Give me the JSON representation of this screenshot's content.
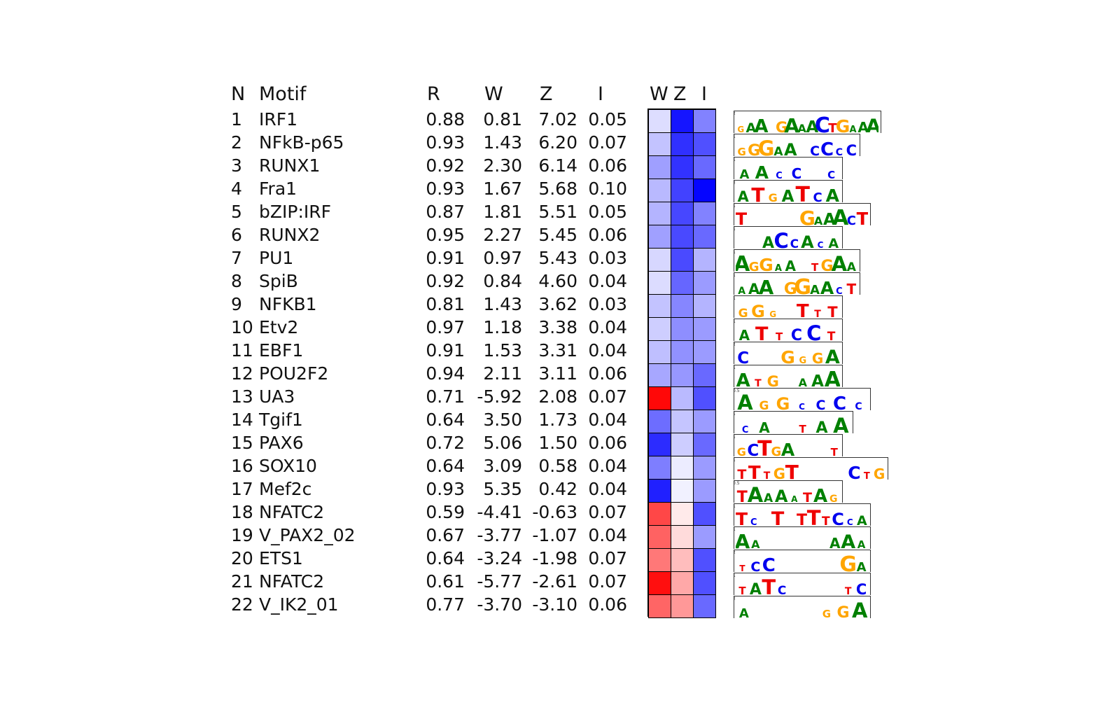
{
  "chart_data": {
    "type": "table",
    "columns": [
      "N",
      "Motif",
      "R",
      "W",
      "Z",
      "I"
    ],
    "heatmap_columns": [
      "W",
      "Z",
      "I"
    ],
    "colors": {
      "positive": "#0000ff",
      "negative": "#ff0000",
      "neutral": "#ffffff"
    },
    "rows": [
      {
        "N": "1",
        "Motif": "IRF1",
        "R": "0.88",
        "W": "0.81",
        "Z": "7.02",
        "I": "0.05"
      },
      {
        "N": "2",
        "Motif": "NFkB-p65",
        "R": "0.93",
        "W": "1.43",
        "Z": "6.20",
        "I": "0.07"
      },
      {
        "N": "3",
        "Motif": "RUNX1",
        "R": "0.92",
        "W": "2.30",
        "Z": "6.14",
        "I": "0.06"
      },
      {
        "N": "4",
        "Motif": "Fra1",
        "R": "0.93",
        "W": "1.67",
        "Z": "5.68",
        "I": "0.10"
      },
      {
        "N": "5",
        "Motif": "bZIP:IRF",
        "R": "0.87",
        "W": "1.81",
        "Z": "5.51",
        "I": "0.05"
      },
      {
        "N": "6",
        "Motif": "RUNX2",
        "R": "0.95",
        "W": "2.27",
        "Z": "5.45",
        "I": "0.06"
      },
      {
        "N": "7",
        "Motif": "PU1",
        "R": "0.91",
        "W": "0.97",
        "Z": "5.43",
        "I": "0.03"
      },
      {
        "N": "8",
        "Motif": "SpiB",
        "R": "0.92",
        "W": "0.84",
        "Z": "4.60",
        "I": "0.04"
      },
      {
        "N": "9",
        "Motif": "NFKB1",
        "R": "0.81",
        "W": "1.43",
        "Z": "3.62",
        "I": "0.03"
      },
      {
        "N": "10",
        "Motif": "Etv2",
        "R": "0.97",
        "W": "1.18",
        "Z": "3.38",
        "I": "0.04"
      },
      {
        "N": "11",
        "Motif": "EBF1",
        "R": "0.91",
        "W": "1.53",
        "Z": "3.31",
        "I": "0.04"
      },
      {
        "N": "12",
        "Motif": "POU2F2",
        "R": "0.94",
        "W": "2.11",
        "Z": "3.11",
        "I": "0.06"
      },
      {
        "N": "13",
        "Motif": "UA3",
        "R": "0.71",
        "W": "-5.92",
        "Z": "2.08",
        "I": "0.07"
      },
      {
        "N": "14",
        "Motif": "Tgif1",
        "R": "0.64",
        "W": "3.50",
        "Z": "1.73",
        "I": "0.04"
      },
      {
        "N": "15",
        "Motif": "PAX6",
        "R": "0.72",
        "W": "5.06",
        "Z": "1.50",
        "I": "0.06"
      },
      {
        "N": "16",
        "Motif": "SOX10",
        "R": "0.64",
        "W": "3.09",
        "Z": "0.58",
        "I": "0.04"
      },
      {
        "N": "17",
        "Motif": "Mef2c",
        "R": "0.93",
        "W": "5.35",
        "Z": "0.42",
        "I": "0.04"
      },
      {
        "N": "18",
        "Motif": "NFATC2",
        "R": "0.59",
        "W": "-4.41",
        "Z": "-0.63",
        "I": "0.07"
      },
      {
        "N": "19",
        "Motif": "V_PAX2_02",
        "R": "0.67",
        "W": "-3.77",
        "Z": "-1.07",
        "I": "0.04"
      },
      {
        "N": "20",
        "Motif": "ETS1",
        "R": "0.64",
        "W": "-3.24",
        "Z": "-1.98",
        "I": "0.07"
      },
      {
        "N": "21",
        "Motif": "NFATC2",
        "R": "0.61",
        "W": "-5.77",
        "Z": "-2.61",
        "I": "0.07"
      },
      {
        "N": "22",
        "Motif": "V_IK2_01",
        "R": "0.77",
        "W": "-3.70",
        "Z": "-3.10",
        "I": "0.06"
      }
    ],
    "logos": [
      {
        "seq": "GAA GAAACTGAAA",
        "ymax": "2"
      },
      {
        "seq": "GGGAA CCCC",
        "ymax": "1"
      },
      {
        "seq": "AACC C",
        "ymax": "1"
      },
      {
        "seq": "ATGATCA",
        "ymax": "2"
      },
      {
        "seq": "T     GAAACT",
        "ymax": "1"
      },
      {
        "seq": "  ACCACA",
        "ymax": "1"
      },
      {
        "seq": "AGGAA TGAA",
        "ymax": "1"
      },
      {
        "seq": "AAA GGAACT",
        "ymax": "1"
      },
      {
        "seq": "GGG TTT",
        "ymax": "1"
      },
      {
        "seq": "ATTCCT",
        "ymax": "1"
      },
      {
        "seq": "C  GGGA",
        "ymax": "2"
      },
      {
        "seq": "ATG AAA",
        "ymax": "1"
      },
      {
        "seq": "AGGCCCC",
        "ymax": "0.5"
      },
      {
        "seq": "CA TAA",
        "ymax": "1"
      },
      {
        "seq": "GCTGA   T",
        "ymax": "1"
      },
      {
        "seq": "TTTGT    CTG",
        "ymax": "1"
      },
      {
        "seq": "TAAAATAG",
        "ymax": "0.5"
      },
      {
        "seq": "TC T TTTCCA",
        "ymax": "1"
      },
      {
        "seq": "AA     AAA",
        "ymax": "1"
      },
      {
        "seq": "TCC     GA",
        "ymax": "2"
      },
      {
        "seq": "TATC    TC",
        "ymax": "1"
      },
      {
        "seq": "A    GGA",
        "ymax": "2"
      }
    ]
  }
}
